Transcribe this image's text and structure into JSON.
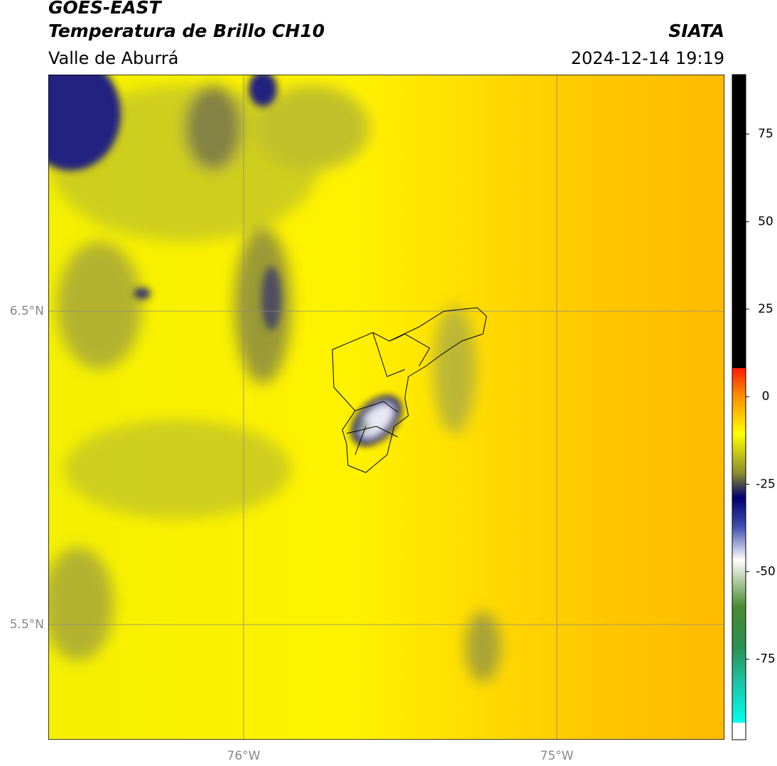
{
  "header": {
    "title": "GOES-EAST",
    "subtitle": "Temperatura de Brillo CH10",
    "source": "SIATA",
    "region": "Valle de Aburrá",
    "datetime": "2024-12-14 19:19"
  },
  "map": {
    "lat_labels": [
      "6.5°N",
      "5.5°N"
    ],
    "lon_labels": [
      "76°W",
      "75°W"
    ]
  },
  "colorbar": {
    "range": [
      -98,
      92
    ],
    "ticks": [
      75,
      50,
      25,
      0,
      -25,
      -50,
      -75
    ]
  }
}
